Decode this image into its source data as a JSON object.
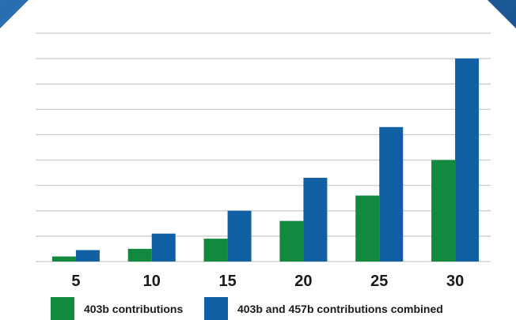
{
  "colors": {
    "background": "#1f5f9e",
    "card": "#ffffff",
    "grid": "#c9c9c9",
    "series_403b": "#11893f",
    "series_combined": "#1160a4",
    "text": "#1a1a1a"
  },
  "chart_data": {
    "type": "bar",
    "title": "",
    "xlabel": "",
    "ylabel": "",
    "categories": [
      "5",
      "10",
      "15",
      "20",
      "25",
      "30"
    ],
    "series": [
      {
        "name": "403b contributions",
        "color": "#11893f",
        "values": [
          0.2,
          0.5,
          0.9,
          1.6,
          2.6,
          4.0
        ]
      },
      {
        "name": "403b and 457b contributions combined",
        "color": "#1160a4",
        "values": [
          0.45,
          1.1,
          2.0,
          3.3,
          5.3,
          8.0
        ]
      }
    ],
    "ylim": [
      0,
      9
    ],
    "y_gridlines": 9,
    "grid": true,
    "y_tick_labels_shown": false,
    "legend_position": "bottom"
  }
}
